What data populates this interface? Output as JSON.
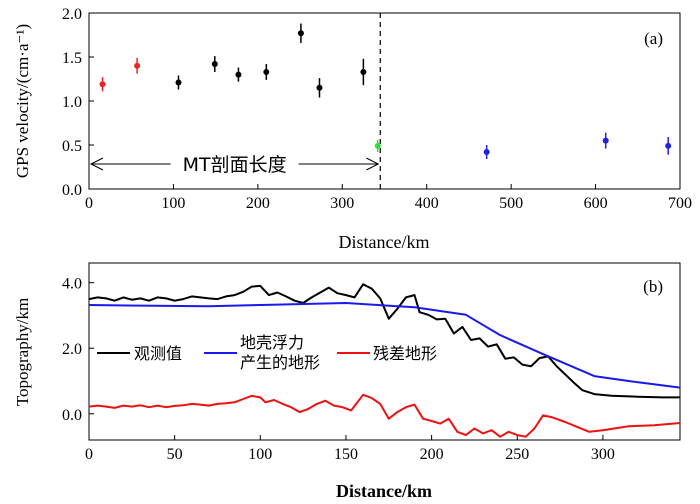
{
  "chart_data": [
    {
      "type": "scatter",
      "panel_label": "(a)",
      "xlabel": "Distance/km",
      "ylabel": "GPS velocity/(cm·a⁻¹)",
      "xlim": [
        0,
        700
      ],
      "ylim": [
        0,
        2.0
      ],
      "xticks": [
        "0",
        "100",
        "200",
        "300",
        "400",
        "500",
        "600",
        "700"
      ],
      "yticks": [
        "0.0",
        "0.5",
        "1.0",
        "1.5",
        "2.0"
      ],
      "divider_x": 345,
      "annotation": {
        "text": "MT剖面长度",
        "from": 0,
        "to": 345
      },
      "series": [
        {
          "name": "red",
          "color": "#ee2222",
          "points": [
            {
              "x": 16,
              "y": 1.19,
              "err": 0.08
            },
            {
              "x": 57,
              "y": 1.4,
              "err": 0.09
            }
          ]
        },
        {
          "name": "black",
          "color": "#000000",
          "points": [
            {
              "x": 106,
              "y": 1.21,
              "err": 0.08
            },
            {
              "x": 149,
              "y": 1.42,
              "err": 0.09
            },
            {
              "x": 177,
              "y": 1.3,
              "err": 0.08
            },
            {
              "x": 210,
              "y": 1.33,
              "err": 0.09
            },
            {
              "x": 251,
              "y": 1.77,
              "err": 0.11
            },
            {
              "x": 273,
              "y": 1.15,
              "err": 0.11
            },
            {
              "x": 325,
              "y": 1.33,
              "err": 0.15
            }
          ]
        },
        {
          "name": "green",
          "color": "#33dd33",
          "points": [
            {
              "x": 342,
              "y": 0.49,
              "err": 0.07
            }
          ]
        },
        {
          "name": "blue",
          "color": "#2222dd",
          "points": [
            {
              "x": 471,
              "y": 0.42,
              "err": 0.08
            },
            {
              "x": 612,
              "y": 0.55,
              "err": 0.09
            },
            {
              "x": 686,
              "y": 0.49,
              "err": 0.1
            }
          ]
        }
      ]
    },
    {
      "type": "line",
      "panel_label": "(b)",
      "xlabel": "Distance/km",
      "ylabel": "Topography/km",
      "xlim": [
        0,
        345
      ],
      "ylim": [
        -0.8,
        4.6
      ],
      "xticks": [
        "0",
        "50",
        "100",
        "150",
        "200",
        "250",
        "300"
      ],
      "yticks": [
        "0.0",
        "2.0",
        "4.0"
      ],
      "legend": [
        {
          "label": "观测值",
          "color": "#000000"
        },
        {
          "label": "地壳浮力\n产生的地形",
          "color": "#1a1aee"
        },
        {
          "label": "残差地形",
          "color": "#ee1111"
        }
      ],
      "series": [
        {
          "name": "观测值",
          "color": "#000000",
          "points": [
            [
              0,
              3.5
            ],
            [
              5,
              3.55
            ],
            [
              10,
              3.52
            ],
            [
              15,
              3.45
            ],
            [
              20,
              3.55
            ],
            [
              25,
              3.48
            ],
            [
              30,
              3.52
            ],
            [
              35,
              3.45
            ],
            [
              40,
              3.55
            ],
            [
              45,
              3.52
            ],
            [
              50,
              3.45
            ],
            [
              55,
              3.5
            ],
            [
              60,
              3.58
            ],
            [
              65,
              3.55
            ],
            [
              70,
              3.52
            ],
            [
              75,
              3.5
            ],
            [
              80,
              3.58
            ],
            [
              85,
              3.62
            ],
            [
              90,
              3.72
            ],
            [
              95,
              3.88
            ],
            [
              100,
              3.9
            ],
            [
              105,
              3.62
            ],
            [
              110,
              3.7
            ],
            [
              115,
              3.58
            ],
            [
              120,
              3.45
            ],
            [
              125,
              3.38
            ],
            [
              130,
              3.55
            ],
            [
              135,
              3.7
            ],
            [
              140,
              3.85
            ],
            [
              145,
              3.68
            ],
            [
              150,
              3.62
            ],
            [
              155,
              3.55
            ],
            [
              160,
              3.95
            ],
            [
              165,
              3.82
            ],
            [
              170,
              3.52
            ],
            [
              175,
              2.9
            ],
            [
              180,
              3.2
            ],
            [
              185,
              3.55
            ],
            [
              190,
              3.62
            ],
            [
              193,
              3.1
            ],
            [
              198,
              3.02
            ],
            [
              203,
              2.88
            ],
            [
              208,
              2.9
            ],
            [
              213,
              2.45
            ],
            [
              218,
              2.65
            ],
            [
              223,
              2.25
            ],
            [
              228,
              2.3
            ],
            [
              233,
              2.05
            ],
            [
              238,
              2.12
            ],
            [
              243,
              1.68
            ],
            [
              248,
              1.72
            ],
            [
              253,
              1.5
            ],
            [
              258,
              1.45
            ],
            [
              263,
              1.7
            ],
            [
              268,
              1.75
            ],
            [
              273,
              1.45
            ],
            [
              278,
              1.2
            ],
            [
              283,
              0.95
            ],
            [
              288,
              0.72
            ],
            [
              295,
              0.6
            ],
            [
              305,
              0.55
            ],
            [
              320,
              0.52
            ],
            [
              335,
              0.5
            ],
            [
              345,
              0.5
            ]
          ]
        },
        {
          "name": "地壳浮力产生的地形",
          "color": "#1a1aee",
          "points": [
            [
              0,
              3.32
            ],
            [
              30,
              3.3
            ],
            [
              70,
              3.28
            ],
            [
              110,
              3.33
            ],
            [
              150,
              3.38
            ],
            [
              190,
              3.25
            ],
            [
              220,
              3.02
            ],
            [
              240,
              2.4
            ],
            [
              265,
              1.82
            ],
            [
              295,
              1.15
            ],
            [
              315,
              1.0
            ],
            [
              345,
              0.8
            ]
          ]
        },
        {
          "name": "残差地形",
          "color": "#ee1111",
          "points": [
            [
              0,
              0.22
            ],
            [
              5,
              0.25
            ],
            [
              10,
              0.22
            ],
            [
              15,
              0.18
            ],
            [
              20,
              0.25
            ],
            [
              25,
              0.22
            ],
            [
              30,
              0.26
            ],
            [
              35,
              0.2
            ],
            [
              40,
              0.25
            ],
            [
              45,
              0.2
            ],
            [
              50,
              0.24
            ],
            [
              55,
              0.26
            ],
            [
              60,
              0.3
            ],
            [
              65,
              0.28
            ],
            [
              70,
              0.25
            ],
            [
              75,
              0.3
            ],
            [
              80,
              0.32
            ],
            [
              85,
              0.35
            ],
            [
              90,
              0.45
            ],
            [
              95,
              0.55
            ],
            [
              100,
              0.5
            ],
            [
              103,
              0.35
            ],
            [
              108,
              0.42
            ],
            [
              113,
              0.3
            ],
            [
              118,
              0.2
            ],
            [
              123,
              0.05
            ],
            [
              128,
              0.15
            ],
            [
              133,
              0.3
            ],
            [
              138,
              0.4
            ],
            [
              143,
              0.25
            ],
            [
              148,
              0.2
            ],
            [
              153,
              0.1
            ],
            [
              160,
              0.58
            ],
            [
              165,
              0.48
            ],
            [
              170,
              0.3
            ],
            [
              175,
              -0.15
            ],
            [
              180,
              0.05
            ],
            [
              185,
              0.2
            ],
            [
              190,
              0.28
            ],
            [
              195,
              -0.15
            ],
            [
              200,
              -0.22
            ],
            [
              205,
              -0.3
            ],
            [
              210,
              -0.15
            ],
            [
              215,
              -0.55
            ],
            [
              220,
              -0.65
            ],
            [
              225,
              -0.45
            ],
            [
              230,
              -0.6
            ],
            [
              235,
              -0.5
            ],
            [
              240,
              -0.7
            ],
            [
              245,
              -0.55
            ],
            [
              250,
              -0.65
            ],
            [
              255,
              -0.7
            ],
            [
              260,
              -0.45
            ],
            [
              265,
              -0.05
            ],
            [
              270,
              -0.1
            ],
            [
              278,
              -0.25
            ],
            [
              285,
              -0.4
            ],
            [
              292,
              -0.55
            ],
            [
              300,
              -0.5
            ],
            [
              315,
              -0.38
            ],
            [
              330,
              -0.35
            ],
            [
              345,
              -0.28
            ]
          ]
        }
      ]
    }
  ]
}
